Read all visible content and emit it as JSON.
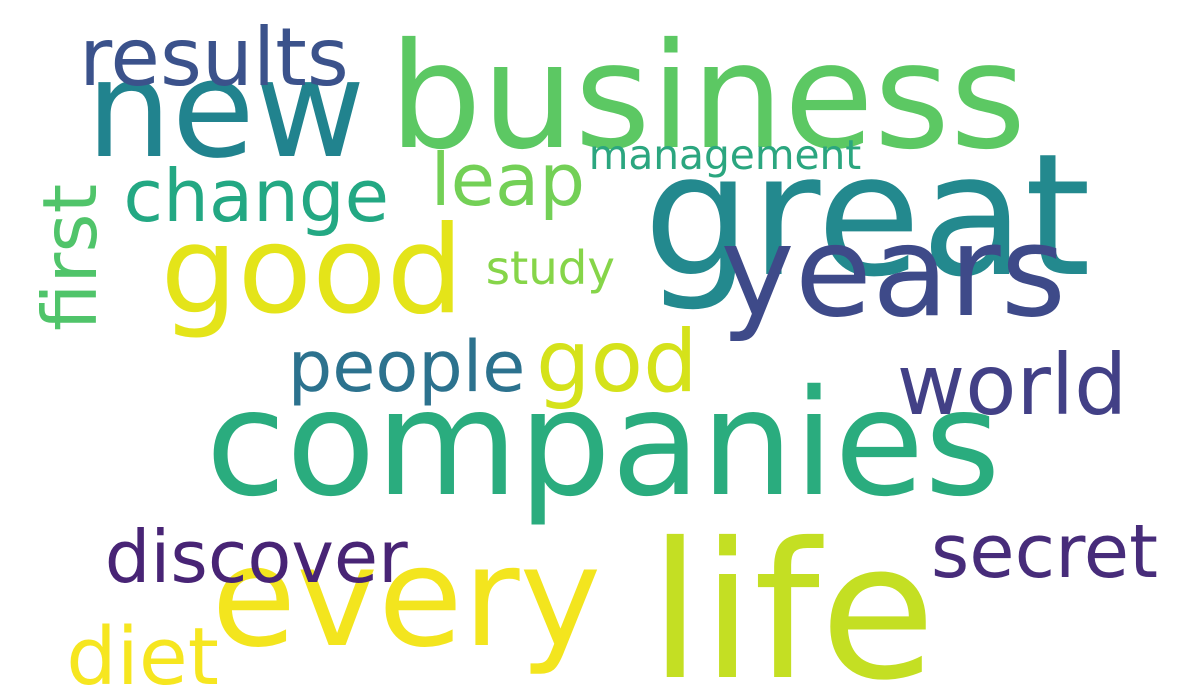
{
  "word_cloud": {
    "words": [
      {
        "key": "companies",
        "text": "companies",
        "color": "#2aac7e"
      },
      {
        "key": "life",
        "text": "life",
        "color": "#c4df23"
      },
      {
        "key": "great",
        "text": "great",
        "color": "#23898e"
      },
      {
        "key": "business",
        "text": "business",
        "color": "#5cc863"
      },
      {
        "key": "good",
        "text": "good",
        "color": "#e4e419"
      },
      {
        "key": "new",
        "text": "new",
        "color": "#21838e"
      },
      {
        "key": "every",
        "text": "every",
        "color": "#f3e51e"
      },
      {
        "key": "years",
        "text": "years",
        "color": "#3e4a89"
      },
      {
        "key": "change",
        "text": "change",
        "color": "#23a883"
      },
      {
        "key": "results",
        "text": "results",
        "color": "#3b528b"
      },
      {
        "key": "people",
        "text": "people",
        "color": "#2c728e"
      },
      {
        "key": "god",
        "text": "god",
        "color": "#d5e21a"
      },
      {
        "key": "world",
        "text": "world",
        "color": "#424086"
      },
      {
        "key": "discover",
        "text": "discover",
        "color": "#482475"
      },
      {
        "key": "secret",
        "text": "secret",
        "color": "#472c7a"
      },
      {
        "key": "leap",
        "text": "leap",
        "color": "#73d056"
      },
      {
        "key": "first",
        "text": "first",
        "color": "#50c46a"
      },
      {
        "key": "diet",
        "text": "diet",
        "color": "#f6e620"
      },
      {
        "key": "management",
        "text": "management",
        "color": "#2ba67f"
      },
      {
        "key": "study",
        "text": "study",
        "color": "#86d549"
      }
    ]
  }
}
